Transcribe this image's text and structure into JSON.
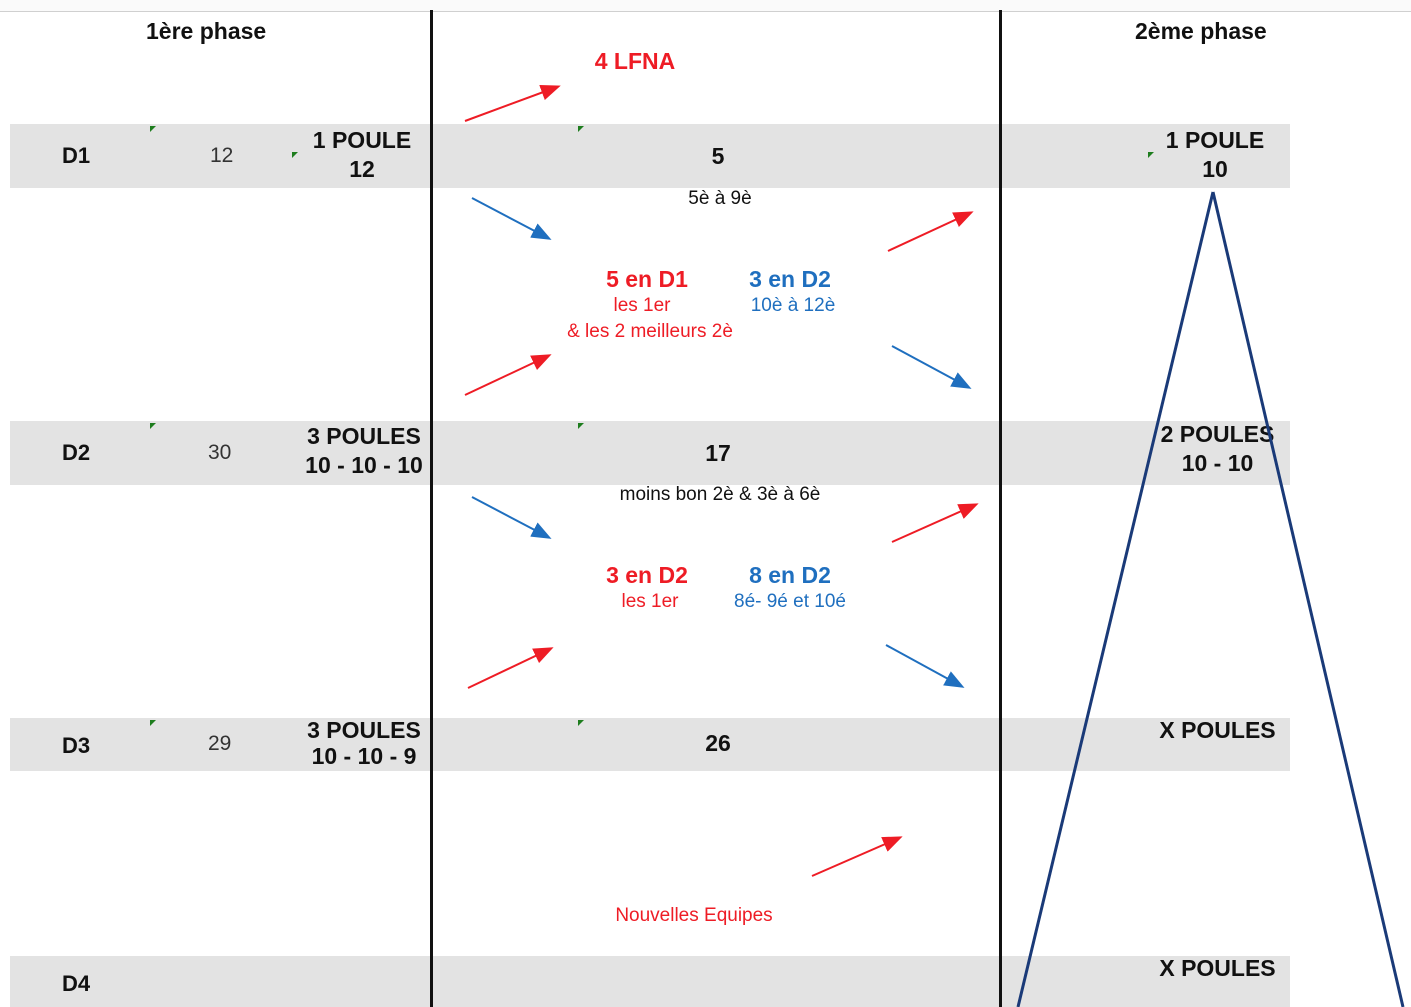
{
  "headers": {
    "phase1": "1ère phase",
    "phase2": "2ème phase"
  },
  "rows": [
    {
      "level": "D1",
      "teams": "12",
      "poules_l1": "1 POULE",
      "poules_l2": "12",
      "count": "5",
      "phase2_l1": "1 POULE",
      "phase2_l2": "10"
    },
    {
      "level": "D2",
      "teams": "30",
      "poules_l1": "3 POULES",
      "poules_l2": "10 - 10 - 10",
      "count": "17",
      "phase2_l1": "2 POULES",
      "phase2_l2": "10 - 10"
    },
    {
      "level": "D3",
      "teams": "29",
      "poules_l1": "3 POULES",
      "poules_l2": "10 - 10 - 9",
      "count": "26",
      "phase2_l1": "X POULES",
      "phase2_l2": ""
    },
    {
      "level": "D4",
      "teams": "",
      "poules_l1": "",
      "poules_l2": "",
      "count": "",
      "phase2_l1": "X POULES",
      "phase2_l2": ""
    }
  ],
  "middle": {
    "lfna": "4 LFNA",
    "d1_sub": "5è à 9è",
    "block1": {
      "red_title": "5 en D1",
      "red_l1": "les 1er",
      "red_l2": "& les 2 meilleurs  2è",
      "blue_title": "3 en D2",
      "blue_l1": "10è à 12è"
    },
    "d2_sub": "moins bon 2è & 3è à 6è",
    "block2": {
      "red_title": "3 en D2",
      "red_l1": "les 1er",
      "blue_title": "8 en D2",
      "blue_l1": "8é- 9é et 10é"
    },
    "new_teams": "Nouvelles Equipes"
  },
  "colors": {
    "red": "#ee1c25",
    "blue": "#1f6fbf",
    "navy": "#1a3a78",
    "band": "#e3e3e3",
    "marker": "#1e7d1e"
  }
}
